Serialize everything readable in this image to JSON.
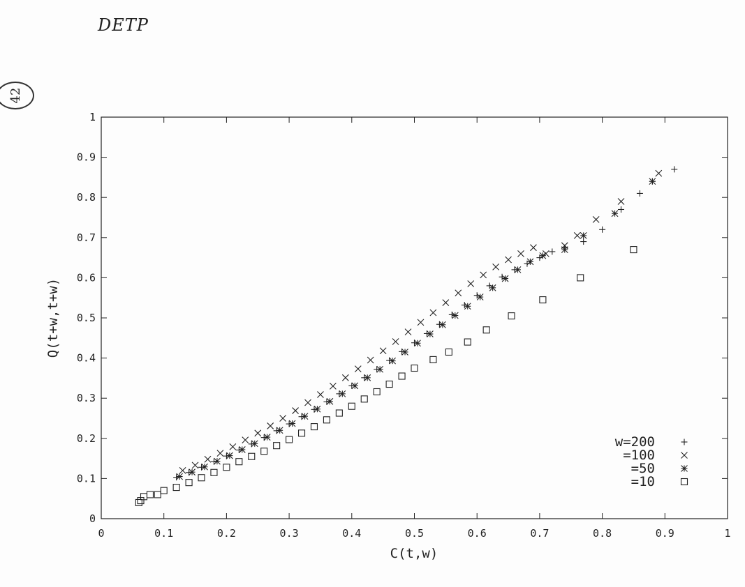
{
  "handwriting": {
    "title": "DETP",
    "page_number": "42"
  },
  "chart_data": {
    "type": "scatter",
    "xlabel": "C(t,w)",
    "ylabel": "Q(t+w,t+w)",
    "xlim": [
      0,
      1
    ],
    "ylim": [
      0,
      1
    ],
    "xticks": [
      "0",
      "0.1",
      "0.2",
      "0.3",
      "0.4",
      "0.5",
      "0.6",
      "0.7",
      "0.8",
      "0.9",
      "1"
    ],
    "yticks": [
      "0",
      "0.1",
      "0.2",
      "0.3",
      "0.4",
      "0.5",
      "0.6",
      "0.7",
      "0.8",
      "0.9",
      "1"
    ],
    "grid": false,
    "legend_position": "bottom-right",
    "series": [
      {
        "name": "w=200",
        "marker": "plus",
        "x": [
          0.12,
          0.14,
          0.16,
          0.18,
          0.2,
          0.22,
          0.24,
          0.26,
          0.28,
          0.3,
          0.32,
          0.34,
          0.36,
          0.38,
          0.4,
          0.42,
          0.44,
          0.46,
          0.48,
          0.5,
          0.52,
          0.54,
          0.56,
          0.58,
          0.6,
          0.62,
          0.64,
          0.66,
          0.68,
          0.7,
          0.72,
          0.74,
          0.77,
          0.8,
          0.83,
          0.86,
          0.88,
          0.915
        ],
        "y": [
          0.103,
          0.115,
          0.128,
          0.142,
          0.156,
          0.171,
          0.186,
          0.202,
          0.219,
          0.236,
          0.254,
          0.272,
          0.291,
          0.311,
          0.331,
          0.351,
          0.372,
          0.394,
          0.416,
          0.438,
          0.461,
          0.484,
          0.508,
          0.532,
          0.556,
          0.58,
          0.602,
          0.62,
          0.635,
          0.65,
          0.665,
          0.675,
          0.69,
          0.72,
          0.77,
          0.81,
          0.84,
          0.87
        ]
      },
      {
        "name": "=100",
        "marker": "cross",
        "x": [
          0.13,
          0.15,
          0.17,
          0.19,
          0.21,
          0.23,
          0.25,
          0.27,
          0.29,
          0.31,
          0.33,
          0.35,
          0.37,
          0.39,
          0.41,
          0.43,
          0.45,
          0.47,
          0.49,
          0.51,
          0.53,
          0.55,
          0.57,
          0.59,
          0.61,
          0.63,
          0.65,
          0.67,
          0.69,
          0.71,
          0.74,
          0.76,
          0.79,
          0.83,
          0.89
        ],
        "y": [
          0.12,
          0.133,
          0.148,
          0.163,
          0.179,
          0.196,
          0.213,
          0.231,
          0.25,
          0.269,
          0.289,
          0.309,
          0.33,
          0.351,
          0.373,
          0.395,
          0.418,
          0.441,
          0.465,
          0.489,
          0.513,
          0.538,
          0.562,
          0.585,
          0.607,
          0.627,
          0.645,
          0.66,
          0.675,
          0.66,
          0.68,
          0.705,
          0.745,
          0.79,
          0.86
        ]
      },
      {
        "name": "=50",
        "marker": "star",
        "x": [
          0.125,
          0.145,
          0.165,
          0.185,
          0.205,
          0.225,
          0.245,
          0.265,
          0.285,
          0.305,
          0.325,
          0.345,
          0.365,
          0.385,
          0.405,
          0.425,
          0.445,
          0.465,
          0.485,
          0.505,
          0.525,
          0.545,
          0.565,
          0.585,
          0.605,
          0.625,
          0.645,
          0.665,
          0.685,
          0.705,
          0.74,
          0.77,
          0.82,
          0.88
        ],
        "y": [
          0.105,
          0.116,
          0.129,
          0.143,
          0.157,
          0.172,
          0.187,
          0.203,
          0.22,
          0.237,
          0.255,
          0.273,
          0.292,
          0.311,
          0.331,
          0.351,
          0.372,
          0.393,
          0.415,
          0.437,
          0.46,
          0.483,
          0.506,
          0.529,
          0.552,
          0.575,
          0.598,
          0.62,
          0.64,
          0.655,
          0.67,
          0.705,
          0.76,
          0.84
        ]
      },
      {
        "name": "=10",
        "marker": "square",
        "x": [
          0.06,
          0.063,
          0.068,
          0.078,
          0.09,
          0.1,
          0.12,
          0.14,
          0.16,
          0.18,
          0.2,
          0.22,
          0.24,
          0.26,
          0.28,
          0.3,
          0.32,
          0.34,
          0.36,
          0.38,
          0.4,
          0.42,
          0.44,
          0.46,
          0.48,
          0.5,
          0.53,
          0.555,
          0.585,
          0.615,
          0.655,
          0.705,
          0.765,
          0.85
        ],
        "y": [
          0.04,
          0.045,
          0.055,
          0.06,
          0.06,
          0.07,
          0.078,
          0.09,
          0.102,
          0.115,
          0.128,
          0.142,
          0.155,
          0.168,
          0.182,
          0.197,
          0.213,
          0.229,
          0.246,
          0.263,
          0.28,
          0.298,
          0.316,
          0.335,
          0.355,
          0.375,
          0.396,
          0.415,
          0.44,
          0.47,
          0.505,
          0.545,
          0.6,
          0.67
        ]
      }
    ]
  }
}
